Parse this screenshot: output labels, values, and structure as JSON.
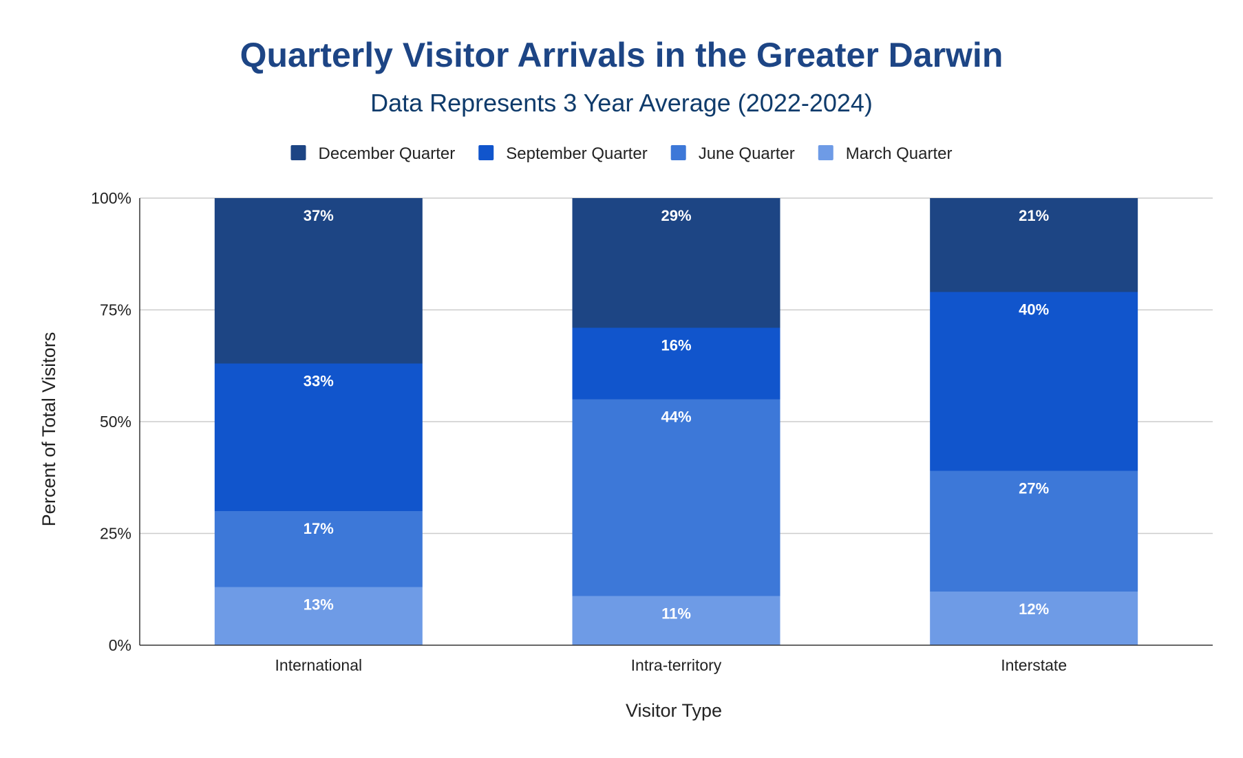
{
  "colors": {
    "title": "#1d4585",
    "subtitle": "#0f3b6b",
    "grid": "#cccccc",
    "axis": "#333333",
    "label_text": "#ffffff"
  },
  "chart_data": {
    "type": "bar",
    "stacked": true,
    "percent_stacked": true,
    "title": "Quarterly Visitor Arrivals in the Greater Darwin",
    "subtitle": "Data Represents 3 Year Average (2022-2024)",
    "xlabel": "Visitor Type",
    "ylabel": "Percent of Total Visitors",
    "ylim": [
      0,
      100
    ],
    "yticks": [
      "0%",
      "25%",
      "50%",
      "75%",
      "100%"
    ],
    "grid": true,
    "legend_position": "top",
    "categories": [
      "International",
      "Intra-territory",
      "Interstate"
    ],
    "series": [
      {
        "name": "March Quarter",
        "color": "#6e9be6",
        "values": [
          13,
          11,
          12
        ],
        "labels": [
          "13%",
          "11%",
          "12%"
        ]
      },
      {
        "name": "June Quarter",
        "color": "#3d78d8",
        "values": [
          17,
          44,
          27
        ],
        "labels": [
          "17%",
          "44%",
          "27%"
        ]
      },
      {
        "name": "September Quarter",
        "color": "#1155cc",
        "values": [
          33,
          16,
          40
        ],
        "labels": [
          "33%",
          "16%",
          "40%"
        ]
      },
      {
        "name": "December Quarter",
        "color": "#1d4584",
        "values": [
          37,
          29,
          21
        ],
        "labels": [
          "37%",
          "29%",
          "21%"
        ]
      }
    ],
    "legend_order": [
      "December Quarter",
      "September Quarter",
      "June Quarter",
      "March Quarter"
    ]
  }
}
